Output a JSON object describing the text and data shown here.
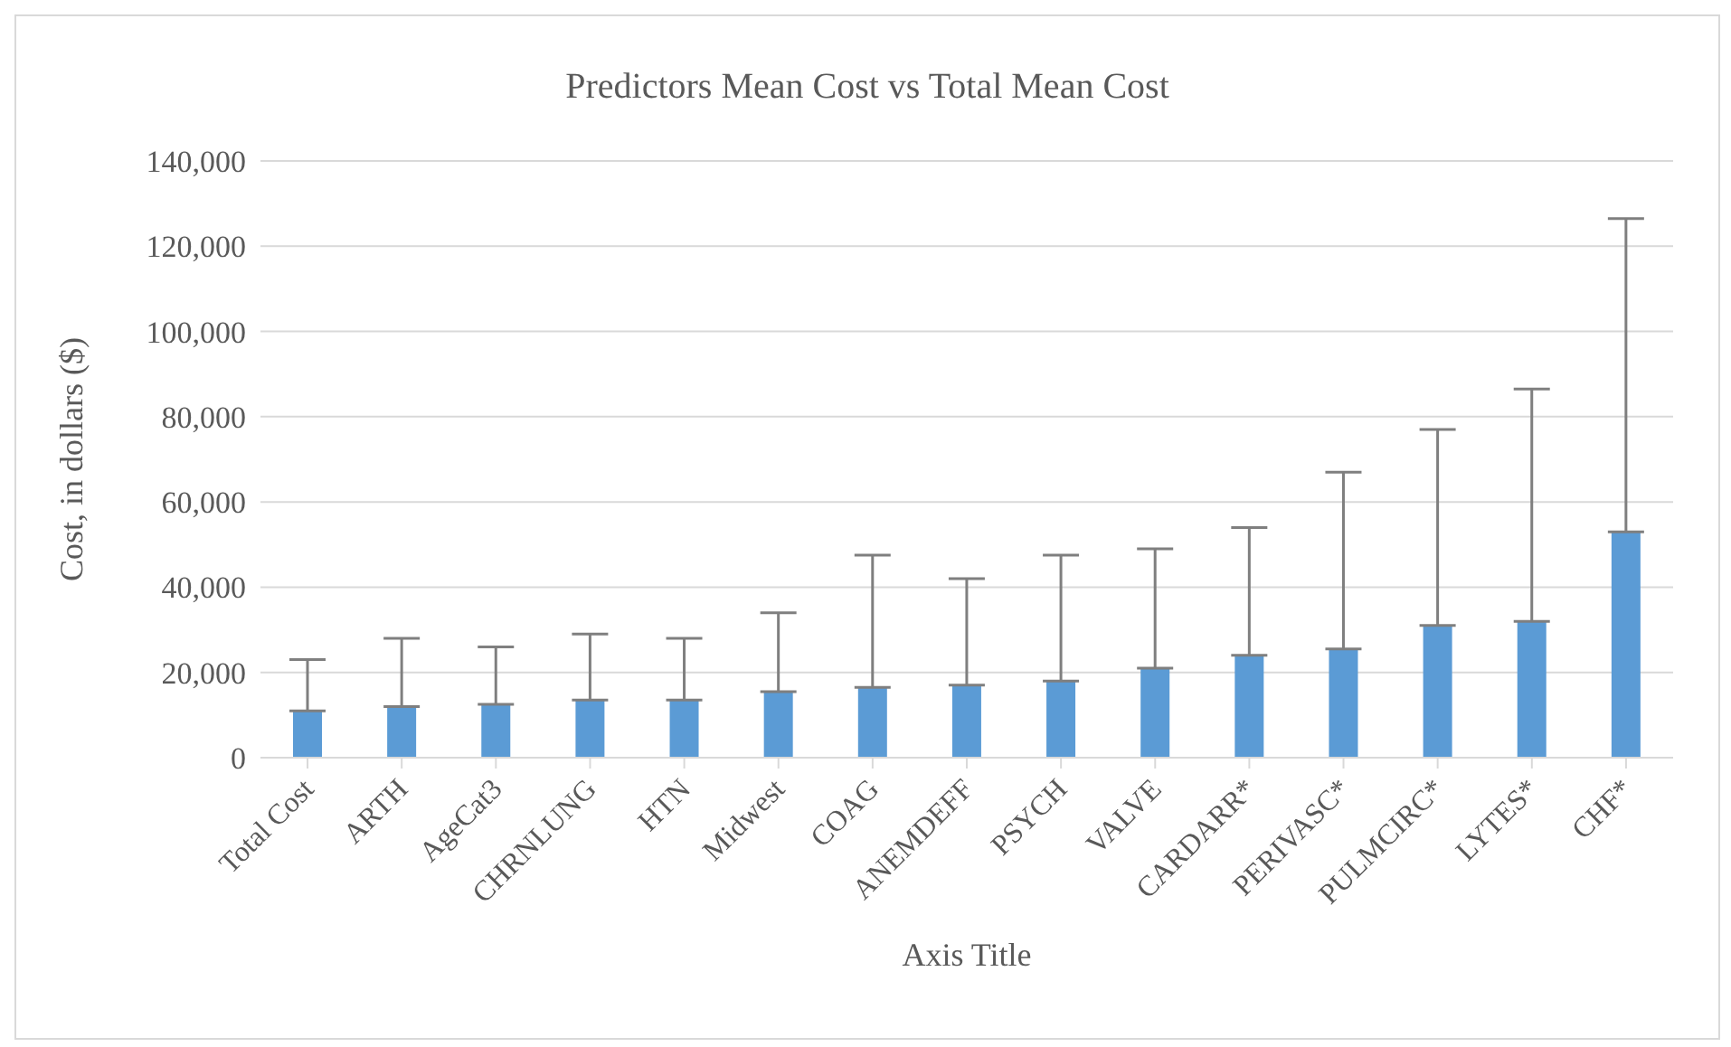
{
  "chart_data": {
    "type": "bar",
    "title": "Predictors Mean Cost vs Total Mean Cost",
    "xlabel": "Axis Title",
    "ylabel": "Cost, in dollars ($)",
    "categories": [
      "Total Cost",
      "ARTH",
      "AgeCat3",
      "CHRNLUNG",
      "HTN",
      "Midwest",
      "COAG",
      "ANEMDEFF",
      "PSYCH",
      "VALVE",
      "CARDARR*",
      "PERIVASC*",
      "PULMCIRC*",
      "LYTES*",
      "CHF*"
    ],
    "values": [
      11000,
      12000,
      12500,
      13500,
      13500,
      15500,
      16500,
      17000,
      18000,
      21000,
      24000,
      25500,
      31000,
      32000,
      53000
    ],
    "errors": [
      [
        11000,
        23000
      ],
      [
        12000,
        28000
      ],
      [
        12500,
        26000
      ],
      [
        13500,
        29000
      ],
      [
        13500,
        28000
      ],
      [
        15500,
        34000
      ],
      [
        16500,
        47500
      ],
      [
        17000,
        42000
      ],
      [
        18000,
        47500
      ],
      [
        21000,
        49000
      ],
      [
        24000,
        54000
      ],
      [
        25500,
        67000
      ],
      [
        31000,
        77000
      ],
      [
        32000,
        86500
      ],
      [
        53000,
        126500
      ]
    ],
    "color": "#5b9bd5",
    "ylim": [
      0,
      140000
    ],
    "yticks": [
      0,
      {
        "value": 20000,
        "label": "20,000"
      },
      {
        "value": 40000,
        "label": "40,000"
      },
      {
        "value": 60000,
        "label": "60,000"
      },
      {
        "value": 80000,
        "label": "80,000"
      },
      {
        "value": 100000,
        "label": "100,000"
      },
      {
        "value": 120000,
        "label": "120,000"
      },
      {
        "value": 140000,
        "label": "140,000"
      }
    ],
    "grid": "y",
    "legend": false
  }
}
